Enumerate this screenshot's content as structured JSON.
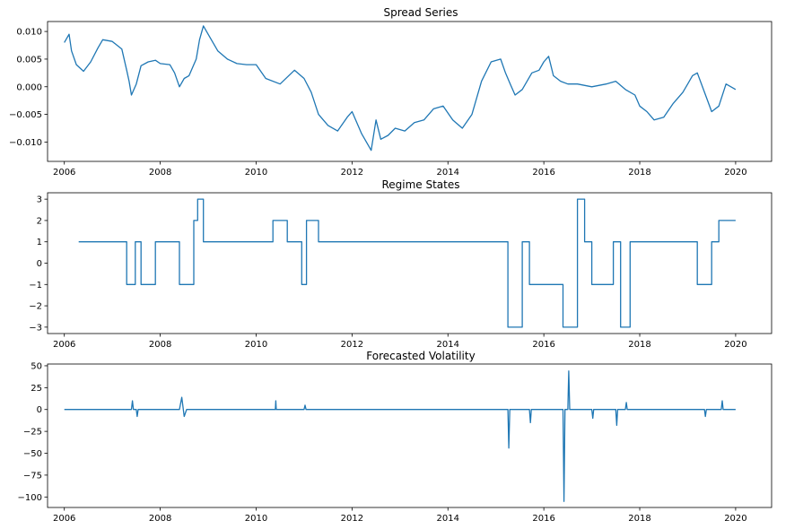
{
  "colors": {
    "series": "#1f77b4",
    "axis": "#000000"
  },
  "chart_data": [
    {
      "type": "line",
      "title": "Spread Series",
      "xlabel": "",
      "ylabel": "",
      "xlim": [
        2005.65,
        2020.75
      ],
      "ylim": [
        -0.0135,
        0.0118
      ],
      "xticks": [
        2006,
        2008,
        2010,
        2012,
        2014,
        2016,
        2018,
        2020
      ],
      "xtick_labels": [
        "2006",
        "2008",
        "2010",
        "2012",
        "2014",
        "2016",
        "2018",
        "2020"
      ],
      "yticks": [
        -0.01,
        -0.005,
        0.0,
        0.005,
        0.01
      ],
      "ytick_labels": [
        "−0.010",
        "−0.005",
        "0.000",
        "0.005",
        "0.010"
      ],
      "grid": false,
      "series": [
        {
          "x": [
            2006.0,
            2006.1,
            2006.15,
            2006.25,
            2006.4,
            2006.55,
            2006.7,
            2006.8,
            2007.0,
            2007.2,
            2007.3,
            2007.35,
            2007.4,
            2007.5,
            2007.6,
            2007.75,
            2007.9,
            2008.0,
            2008.2,
            2008.3,
            2008.4,
            2008.5,
            2008.6,
            2008.75,
            2008.82,
            2008.9,
            2009.0,
            2009.2,
            2009.4,
            2009.6,
            2009.8,
            2010.0,
            2010.2,
            2010.5,
            2010.8,
            2011.0,
            2011.15,
            2011.3,
            2011.5,
            2011.7,
            2011.9,
            2012.0,
            2012.2,
            2012.4,
            2012.5,
            2012.6,
            2012.75,
            2012.9,
            2013.1,
            2013.3,
            2013.5,
            2013.7,
            2013.9,
            2014.1,
            2014.3,
            2014.5,
            2014.7,
            2014.9,
            2015.1,
            2015.2,
            2015.3,
            2015.4,
            2015.55,
            2015.75,
            2015.9,
            2016.0,
            2016.1,
            2016.2,
            2016.35,
            2016.5,
            2016.7,
            2017.0,
            2017.3,
            2017.5,
            2017.7,
            2017.9,
            2018.0,
            2018.15,
            2018.3,
            2018.5,
            2018.7,
            2018.9,
            2019.0,
            2019.1,
            2019.2,
            2019.35,
            2019.5,
            2019.65,
            2019.8,
            2020.0
          ],
          "y": [
            0.008,
            0.0095,
            0.0065,
            0.004,
            0.0028,
            0.0045,
            0.007,
            0.0085,
            0.0082,
            0.0068,
            0.003,
            0.001,
            -0.0015,
            0.0005,
            0.0038,
            0.0045,
            0.0048,
            0.0042,
            0.004,
            0.0025,
            0.0,
            0.0015,
            0.002,
            0.005,
            0.0085,
            0.011,
            0.0095,
            0.0065,
            0.005,
            0.0042,
            0.004,
            0.004,
            0.0015,
            0.0005,
            0.003,
            0.0015,
            -0.001,
            -0.005,
            -0.007,
            -0.008,
            -0.0055,
            -0.0045,
            -0.0085,
            -0.0115,
            -0.006,
            -0.0095,
            -0.0088,
            -0.0075,
            -0.008,
            -0.0065,
            -0.006,
            -0.004,
            -0.0035,
            -0.006,
            -0.0075,
            -0.005,
            0.001,
            0.0045,
            0.005,
            0.0025,
            0.0005,
            -0.0015,
            -0.0005,
            0.0025,
            0.003,
            0.0045,
            0.0055,
            0.002,
            0.001,
            0.0005,
            0.0005,
            0.0,
            0.0005,
            0.001,
            -0.0005,
            -0.0015,
            -0.0035,
            -0.0045,
            -0.006,
            -0.0055,
            -0.003,
            -0.001,
            0.0005,
            0.002,
            0.0025,
            -0.001,
            -0.0045,
            -0.0035,
            0.0005,
            -0.0005
          ]
        }
      ]
    },
    {
      "type": "line",
      "title": "Regime States",
      "xlabel": "",
      "ylabel": "",
      "xlim": [
        2005.65,
        2020.75
      ],
      "ylim": [
        -3.3,
        3.3
      ],
      "xticks": [
        2006,
        2008,
        2010,
        2012,
        2014,
        2016,
        2018,
        2020
      ],
      "xtick_labels": [
        "2006",
        "2008",
        "2010",
        "2012",
        "2014",
        "2016",
        "2018",
        "2020"
      ],
      "yticks": [
        -3,
        -2,
        -1,
        0,
        1,
        2,
        3
      ],
      "ytick_labels": [
        "−3",
        "−2",
        "−1",
        "0",
        "1",
        "2",
        "3"
      ],
      "grid": false,
      "series": [
        {
          "x": [
            2006.3,
            2007.3,
            2007.3,
            2007.48,
            2007.48,
            2007.6,
            2007.6,
            2007.9,
            2007.9,
            2008.4,
            2008.4,
            2008.7,
            2008.7,
            2008.78,
            2008.78,
            2008.9,
            2008.9,
            2010.35,
            2010.35,
            2010.65,
            2010.65,
            2010.95,
            2010.95,
            2011.05,
            2011.05,
            2011.3,
            2011.3,
            2015.25,
            2015.25,
            2015.55,
            2015.55,
            2015.7,
            2015.7,
            2016.4,
            2016.4,
            2016.7,
            2016.7,
            2016.85,
            2016.85,
            2017.0,
            2017.0,
            2017.45,
            2017.45,
            2017.6,
            2017.6,
            2017.8,
            2017.8,
            2019.2,
            2019.2,
            2019.5,
            2019.5,
            2019.65,
            2019.65,
            2020.0
          ],
          "y": [
            1,
            1,
            -1,
            -1,
            1,
            1,
            -1,
            -1,
            1,
            1,
            -1,
            -1,
            2,
            2,
            3,
            3,
            1,
            1,
            2,
            2,
            1,
            1,
            -1,
            -1,
            2,
            2,
            1,
            1,
            -3,
            -3,
            1,
            1,
            -1,
            -1,
            -3,
            -3,
            3,
            3,
            1,
            1,
            -1,
            -1,
            1,
            1,
            -3,
            -3,
            1,
            1,
            -1,
            -1,
            1,
            1,
            2,
            2
          ]
        }
      ]
    },
    {
      "type": "line",
      "title": "Forecasted Volatility",
      "xlabel": "",
      "ylabel": "",
      "xlim": [
        2005.65,
        2020.75
      ],
      "ylim": [
        -112,
        52
      ],
      "xticks": [
        2006,
        2008,
        2010,
        2012,
        2014,
        2016,
        2018,
        2020
      ],
      "xtick_labels": [
        "2006",
        "2008",
        "2010",
        "2012",
        "2014",
        "2016",
        "2018",
        "2020"
      ],
      "yticks": [
        -100,
        -75,
        -50,
        -25,
        0,
        25,
        50
      ],
      "ytick_labels": [
        "−100",
        "−75",
        "−50",
        "−25",
        "0",
        "25",
        "50"
      ],
      "grid": false,
      "series": [
        {
          "x": [
            2006.0,
            2007.4,
            2007.42,
            2007.44,
            2007.5,
            2007.52,
            2007.54,
            2007.56,
            2008.4,
            2008.45,
            2008.5,
            2008.55,
            2010.4,
            2010.41,
            2010.42,
            2011.0,
            2011.02,
            2011.04,
            2015.25,
            2015.27,
            2015.29,
            2015.7,
            2015.72,
            2015.74,
            2016.4,
            2016.42,
            2016.44,
            2016.5,
            2016.52,
            2016.54,
            2017.0,
            2017.02,
            2017.04,
            2017.5,
            2017.52,
            2017.54,
            2017.7,
            2017.72,
            2017.74,
            2019.35,
            2019.37,
            2019.39,
            2019.7,
            2019.72,
            2019.74,
            2020.0
          ],
          "y": [
            0,
            0,
            10,
            0,
            0,
            -8,
            0,
            0,
            0,
            14,
            -8,
            0,
            0,
            10,
            0,
            0,
            5,
            0,
            0,
            -44,
            0,
            0,
            -15,
            0,
            0,
            -105,
            0,
            0,
            44,
            0,
            0,
            -10,
            0,
            0,
            -18,
            0,
            0,
            8,
            0,
            0,
            -8,
            0,
            0,
            10,
            0,
            0
          ]
        }
      ]
    }
  ]
}
